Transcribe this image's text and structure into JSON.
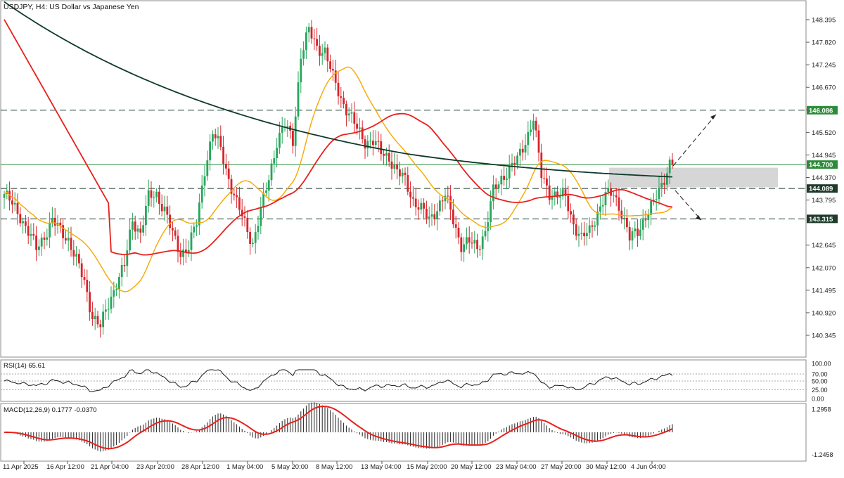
{
  "chart_data": [
    {
      "panel": "price",
      "type": "candlestick",
      "title": "USDJPY, H4:  US Dollar vs Japanese Yen",
      "y_ticks": [
        "148.395",
        "147.820",
        "147.245",
        "146.670",
        "146.095",
        "145.520",
        "144.945",
        "144.370",
        "143.795",
        "142.645",
        "142.070",
        "141.495",
        "140.920",
        "140.345"
      ],
      "ylim": [
        139.9,
        148.95
      ],
      "x_ticks": [
        "11 Apr 2025",
        "16 Apr 12:00",
        "21 Apr 04:00",
        "23 Apr 20:00",
        "28 Apr 12:00",
        "1 May 04:00",
        "5 May 20:00",
        "8 May 12:00",
        "13 May 04:00",
        "15 May 20:00",
        "20 May 12:00",
        "23 May 04:00",
        "27 May 20:00",
        "30 May 12:00",
        "4 Jun 04:00"
      ],
      "levels": [
        {
          "value": 146.086,
          "label": "146.086",
          "style": "dashed"
        },
        {
          "value": 144.7,
          "label": "144.700",
          "style": "solid"
        },
        {
          "value": 144.089,
          "label": "144.089",
          "style": "dashed"
        },
        {
          "value": 143.315,
          "label": "143.315",
          "style": "dashed"
        }
      ],
      "close_anchors": [
        [
          0,
          143.95
        ],
        [
          6,
          143.4
        ],
        [
          12,
          142.55
        ],
        [
          18,
          143.25
        ],
        [
          24,
          142.8
        ],
        [
          30,
          141.7
        ],
        [
          33,
          140.85
        ],
        [
          36,
          140.55
        ],
        [
          39,
          141.15
        ],
        [
          42,
          141.7
        ],
        [
          45,
          142.1
        ],
        [
          48,
          143.3
        ],
        [
          51,
          142.95
        ],
        [
          54,
          143.85
        ],
        [
          57,
          143.95
        ],
        [
          60,
          143.55
        ],
        [
          63,
          142.9
        ],
        [
          66,
          142.45
        ],
        [
          69,
          142.6
        ],
        [
          72,
          143.2
        ],
        [
          75,
          144.6
        ],
        [
          78,
          145.5
        ],
        [
          81,
          145.1
        ],
        [
          84,
          144.35
        ],
        [
          87,
          143.7
        ],
        [
          90,
          143.2
        ],
        [
          93,
          142.7
        ],
        [
          96,
          143.5
        ],
        [
          99,
          144.35
        ],
        [
          102,
          145.3
        ],
        [
          105,
          145.7
        ],
        [
          108,
          145.3
        ],
        [
          111,
          147.5
        ],
        [
          114,
          148.1
        ],
        [
          117,
          147.7
        ],
        [
          120,
          147.6
        ],
        [
          123,
          146.9
        ],
        [
          126,
          146.4
        ],
        [
          129,
          146.0
        ],
        [
          132,
          145.6
        ],
        [
          135,
          145.3
        ],
        [
          138,
          145.3
        ],
        [
          141,
          145.0
        ],
        [
          144,
          144.9
        ],
        [
          147,
          144.5
        ],
        [
          150,
          144.3
        ],
        [
          153,
          143.8
        ],
        [
          156,
          143.55
        ],
        [
          159,
          143.3
        ],
        [
          162,
          143.6
        ],
        [
          165,
          143.9
        ],
        [
          168,
          143.3
        ],
        [
          171,
          142.65
        ],
        [
          174,
          142.7
        ],
        [
          177,
          142.6
        ],
        [
          180,
          143.0
        ],
        [
          183,
          144.0
        ],
        [
          186,
          144.35
        ],
        [
          189,
          144.6
        ],
        [
          192,
          144.8
        ],
        [
          195,
          145.3
        ],
        [
          198,
          145.9
        ],
        [
          201,
          144.4
        ],
        [
          204,
          144.0
        ],
        [
          207,
          143.9
        ],
        [
          210,
          143.85
        ],
        [
          213,
          143.2
        ],
        [
          216,
          142.8
        ],
        [
          219,
          143.0
        ],
        [
          222,
          143.5
        ],
        [
          225,
          143.9
        ],
        [
          228,
          143.95
        ],
        [
          231,
          143.5
        ],
        [
          234,
          142.8
        ],
        [
          237,
          143.0
        ],
        [
          240,
          143.4
        ],
        [
          243,
          143.7
        ],
        [
          246,
          144.2
        ],
        [
          249,
          144.75
        ]
      ],
      "series": [
        {
          "name": "",
          "period": 20,
          "color": "#f5a800"
        },
        {
          "name": "",
          "period": 50,
          "color": "#e8201c"
        },
        {
          "name": "",
          "period": 200,
          "color": "#0d3b2a"
        }
      ],
      "colors": {
        "up": "#26a65b",
        "down": "#d9232a"
      }
    },
    {
      "panel": "rsi",
      "type": "line",
      "title": "RSI(14) 65.61",
      "y_ticks": [
        "100.00",
        "70.00",
        "50.00",
        "25.00",
        "0.00"
      ],
      "ylim": [
        0,
        100
      ],
      "last_value": 65.61,
      "color": "#1a1a1a"
    },
    {
      "panel": "macd",
      "type": "histogram+line",
      "title": "MACD(12,26,9) 0.1777 -0.0370",
      "y_ticks": [
        "1.2958",
        "-1.2458"
      ],
      "ylim": [
        -1.2458,
        1.2958
      ],
      "signal_color": "#e8201c",
      "histogram_color": "#222222"
    }
  ]
}
